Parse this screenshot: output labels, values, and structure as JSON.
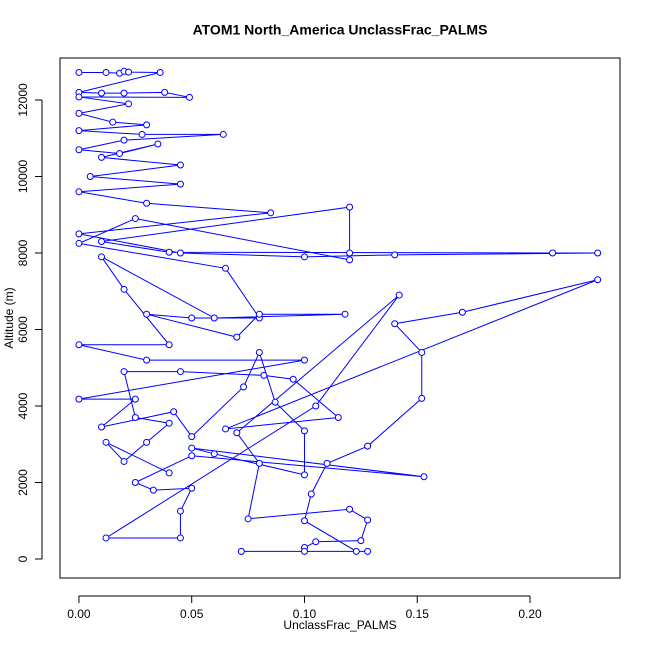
{
  "chart_data": {
    "type": "line-points",
    "title": "ATOM1 North_America UnclassFrac_PALMS",
    "x_label": "UnclassFrac_PALMS",
    "y_label": "Altitude (m)",
    "color": "#0000ff",
    "xlim": [
      -0.0084,
      0.2399
    ],
    "ylim": [
      -497,
      13098
    ],
    "xticks": [
      {
        "value": 0,
        "label": "0.00"
      },
      {
        "value": 0.05,
        "label": "0.05"
      },
      {
        "value": 0.1,
        "label": "0.10"
      },
      {
        "value": 0.15,
        "label": "0.15"
      },
      {
        "value": 0.2,
        "label": "0.20"
      }
    ],
    "yticks": [
      0,
      2000,
      4000,
      6000,
      8000,
      10000,
      12000
    ],
    "x": [
      0.0,
      0.012,
      0.018,
      0.02,
      0.022,
      0.036,
      0.0,
      0.01,
      0.02,
      0.038,
      0.049,
      0.0,
      0.022,
      0.0,
      0.015,
      0.03,
      0.0,
      0.028,
      0.064,
      0.02,
      0.0,
      0.018,
      0.035,
      0.01,
      0.045,
      0.005,
      0.045,
      0.0,
      0.03,
      0.085,
      0.0,
      0.045,
      0.1,
      0.14,
      0.23,
      0.21,
      0.04,
      0.01,
      0.12,
      0.12,
      0.12,
      0.025,
      0.0,
      0.065,
      0.08,
      0.05,
      0.03,
      0.07,
      0.08,
      0.118,
      0.06,
      0.01,
      0.02,
      0.04,
      0.0,
      0.03,
      0.1,
      0.0,
      0.025,
      0.01,
      0.042,
      0.05,
      0.073,
      0.08,
      0.087,
      0.1,
      0.1,
      0.06,
      0.05,
      0.153,
      0.05,
      0.025,
      0.033,
      0.05,
      0.045,
      0.045,
      0.012,
      0.105,
      0.142,
      0.07,
      0.08,
      0.075,
      0.12,
      0.128,
      0.125,
      0.105,
      0.1,
      0.1,
      0.072,
      0.128,
      0.123,
      0.1,
      0.103,
      0.11,
      0.128,
      0.152,
      0.152,
      0.14,
      0.17,
      0.23,
      0.065,
      0.115,
      0.095,
      0.082,
      0.045,
      0.02,
      0.025,
      0.04,
      0.03,
      0.02,
      0.012,
      0.04
    ],
    "values": [
      12720,
      12720,
      12700,
      12750,
      12730,
      12720,
      12200,
      12180,
      12180,
      12200,
      12070,
      12080,
      11900,
      11650,
      11420,
      11350,
      11200,
      11100,
      11100,
      10950,
      10700,
      10600,
      10850,
      10500,
      10300,
      10000,
      9800,
      9600,
      9300,
      9050,
      8500,
      8000,
      7900,
      7950,
      8000,
      8000,
      8020,
      8300,
      9200,
      8000,
      7820,
      8900,
      8250,
      7600,
      6300,
      6300,
      6400,
      5800,
      6400,
      6400,
      6300,
      7900,
      7050,
      5600,
      5600,
      5200,
      5200,
      4180,
      4180,
      3450,
      3850,
      3200,
      4500,
      5400,
      4100,
      3350,
      2200,
      2750,
      2900,
      2150,
      2700,
      2000,
      1800,
      1850,
      1250,
      550,
      550,
      4000,
      6900,
      3300,
      2500,
      1050,
      1300,
      1020,
      480,
      450,
      300,
      200,
      200,
      200,
      200,
      1000,
      1700,
      2500,
      2950,
      4200,
      5400,
      6150,
      6450,
      7300,
      3400,
      3700,
      4700,
      4800,
      4900,
      4900,
      3700,
      3550,
      3050,
      2550,
      3050,
      2250
    ]
  }
}
